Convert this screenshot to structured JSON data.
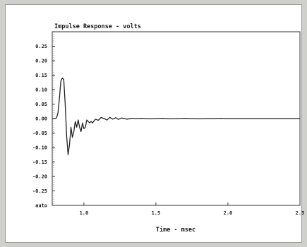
{
  "chart_data": {
    "type": "line",
    "title": "Impulse Response - volts",
    "xlabel": "Time - msec",
    "ylabel": "",
    "xlim": [
      0.78,
      2.5
    ],
    "ylim": [
      -0.3,
      0.3
    ],
    "x_ticks": [
      1.0,
      1.5,
      2.0,
      2.5
    ],
    "x_tick_labels": [
      "1.0",
      "1.5",
      "2.0",
      "2.5"
    ],
    "y_ticks": [
      0.25,
      0.2,
      0.15,
      0.1,
      0.05,
      0.0,
      -0.05,
      -0.1,
      -0.15,
      -0.2,
      -0.25,
      -0.3
    ],
    "y_tick_labels": [
      "0.25",
      "0.20",
      "0.15",
      "0.10",
      "0.05",
      "0.00",
      "-0.05",
      "-0.10",
      "-0.15",
      "-0.20",
      "-0.25",
      "auto"
    ],
    "grid": false,
    "marker_x": 0.79,
    "series": [
      {
        "color": "#222222",
        "x": [
          0.78,
          0.8,
          0.81,
          0.82,
          0.83,
          0.84,
          0.85,
          0.86,
          0.87,
          0.88,
          0.89,
          0.9,
          0.91,
          0.92,
          0.93,
          0.94,
          0.95,
          0.96,
          0.97,
          0.98,
          0.99,
          1.0,
          1.01,
          1.02,
          1.03,
          1.04,
          1.05,
          1.06,
          1.08,
          1.1,
          1.12,
          1.14,
          1.16,
          1.18,
          1.2,
          1.22,
          1.24,
          1.26,
          1.28,
          1.3,
          1.33,
          1.36,
          1.4,
          1.45,
          1.5,
          1.55,
          1.6,
          1.65,
          1.7,
          1.75,
          1.8,
          1.85,
          1.9,
          1.95,
          2.0,
          2.1,
          2.2,
          2.3,
          2.4,
          2.5
        ],
        "y": [
          0.0,
          0.0,
          0.003,
          0.02,
          0.07,
          0.13,
          0.14,
          0.135,
          0.05,
          -0.06,
          -0.125,
          -0.09,
          -0.03,
          -0.065,
          -0.045,
          -0.01,
          -0.03,
          -0.005,
          -0.03,
          -0.045,
          -0.015,
          -0.035,
          -0.03,
          -0.005,
          -0.01,
          -0.015,
          -0.01,
          -0.015,
          -0.002,
          -0.006,
          0.004,
          0.0,
          -0.005,
          0.004,
          -0.002,
          0.003,
          -0.003,
          0.002,
          0.0,
          -0.002,
          0.001,
          0.0,
          0.001,
          -0.001,
          0.0,
          0.001,
          -0.001,
          0.0,
          0.001,
          0.0,
          -0.001,
          0.0,
          0.0,
          0.001,
          0.0,
          0.0,
          0.0,
          0.0,
          0.0,
          0.0
        ]
      }
    ]
  }
}
